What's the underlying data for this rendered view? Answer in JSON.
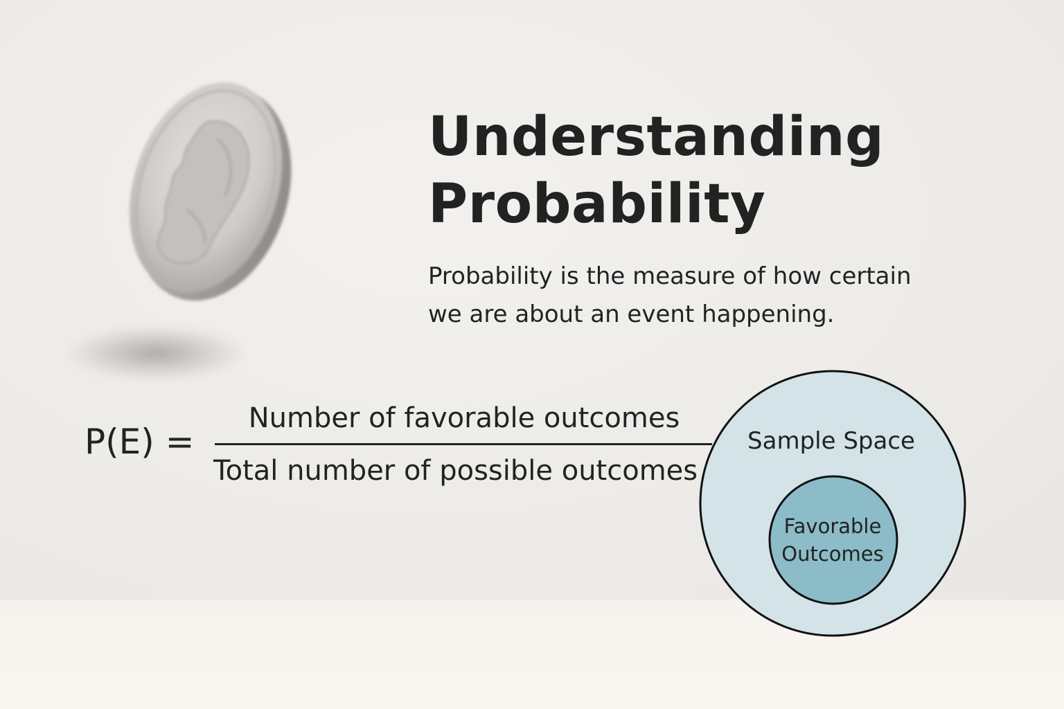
{
  "title": {
    "line1": "Understanding",
    "line2": "Probability"
  },
  "description": {
    "line1": "Probability is the measure of how certain",
    "line2": "we are about an event happening."
  },
  "formula": {
    "lhs": "P(E) =",
    "numerator": "Number of favorable outcomes",
    "denominator": "Total number of possible outcomes"
  },
  "venn": {
    "outer_label": "Sample Space",
    "inner_label_line1": "Favorable",
    "inner_label_line2": "Outcomes",
    "outer_color": "#d3e3e8",
    "inner_color": "#8bbcc8",
    "outline_color": "#111111"
  },
  "illustration": {
    "icon": "coin-icon"
  }
}
